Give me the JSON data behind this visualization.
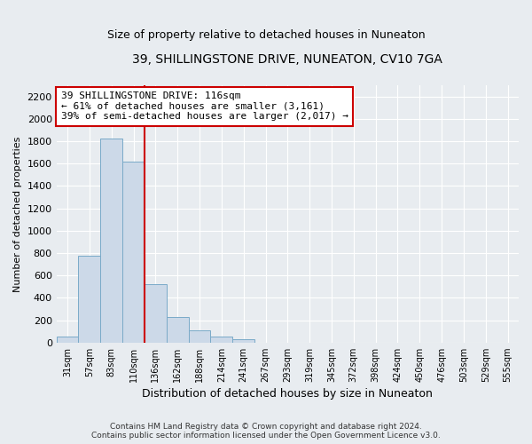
{
  "title": "39, SHILLINGSTONE DRIVE, NUNEATON, CV10 7GA",
  "subtitle": "Size of property relative to detached houses in Nuneaton",
  "xlabel": "Distribution of detached houses by size in Nuneaton",
  "ylabel": "Number of detached properties",
  "bar_labels": [
    "31sqm",
    "57sqm",
    "83sqm",
    "110sqm",
    "136sqm",
    "162sqm",
    "188sqm",
    "214sqm",
    "241sqm",
    "267sqm",
    "293sqm",
    "319sqm",
    "345sqm",
    "372sqm",
    "398sqm",
    "424sqm",
    "450sqm",
    "476sqm",
    "503sqm",
    "529sqm",
    "555sqm"
  ],
  "bar_values": [
    50,
    775,
    1820,
    1620,
    520,
    230,
    105,
    55,
    30,
    0,
    0,
    0,
    0,
    0,
    0,
    0,
    0,
    0,
    0,
    0,
    0
  ],
  "bar_color": "#ccd9e8",
  "bar_edgecolor": "#7aaac8",
  "vline_x_index": 3,
  "vline_color": "#cc0000",
  "annotation_line1": "39 SHILLINGSTONE DRIVE: 116sqm",
  "annotation_line2": "← 61% of detached houses are smaller (3,161)",
  "annotation_line3": "39% of semi-detached houses are larger (2,017) →",
  "annotation_box_edgecolor": "#cc0000",
  "annotation_fontsize": 8.0,
  "ylim": [
    0,
    2300
  ],
  "yticks": [
    0,
    200,
    400,
    600,
    800,
    1000,
    1200,
    1400,
    1600,
    1800,
    2000,
    2200
  ],
  "title_fontsize": 10,
  "subtitle_fontsize": 9,
  "xlabel_fontsize": 9,
  "ylabel_fontsize": 8,
  "footer_text": "Contains HM Land Registry data © Crown copyright and database right 2024.\nContains public sector information licensed under the Open Government Licence v3.0.",
  "background_color": "#e8ecf0",
  "plot_background": "#e8ecf0",
  "grid_color": "#ffffff"
}
